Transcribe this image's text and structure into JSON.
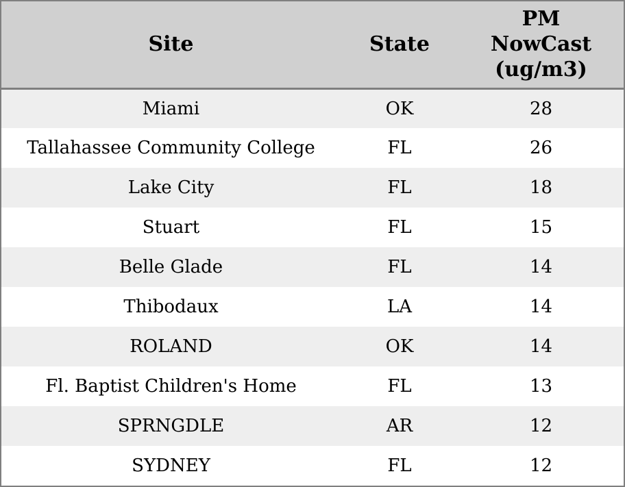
{
  "chart_data": {
    "type": "table",
    "columns": [
      "Site",
      "State",
      "PM NowCast (ug/m3)"
    ],
    "rows": [
      [
        "Miami",
        "OK",
        28
      ],
      [
        "Tallahassee Community College",
        "FL",
        26
      ],
      [
        "Lake City",
        "FL",
        18
      ],
      [
        "Stuart",
        "FL",
        15
      ],
      [
        "Belle Glade",
        "FL",
        14
      ],
      [
        "Thibodaux",
        "LA",
        14
      ],
      [
        "ROLAND",
        "OK",
        14
      ],
      [
        "Fl. Baptist Children's Home",
        "FL",
        13
      ],
      [
        "SPRNGDLE",
        "AR",
        12
      ],
      [
        "SYDNEY",
        "FL",
        12
      ]
    ],
    "layout": {
      "grid": false,
      "alternating_row_shading": true
    }
  },
  "table": {
    "header": [
      {
        "key": "site",
        "lines": [
          "Site"
        ]
      },
      {
        "key": "state",
        "lines": [
          "State"
        ]
      },
      {
        "key": "pm",
        "lines": [
          "PM",
          "NowCast",
          "(ug/m3)"
        ]
      }
    ],
    "rows": [
      {
        "site": "Miami",
        "state": "OK",
        "pm": "28"
      },
      {
        "site": "Tallahassee Community College",
        "state": "FL",
        "pm": "26"
      },
      {
        "site": "Lake City",
        "state": "FL",
        "pm": "18"
      },
      {
        "site": "Stuart",
        "state": "FL",
        "pm": "15"
      },
      {
        "site": "Belle Glade",
        "state": "FL",
        "pm": "14"
      },
      {
        "site": "Thibodaux",
        "state": "LA",
        "pm": "14"
      },
      {
        "site": "ROLAND",
        "state": "OK",
        "pm": "14"
      },
      {
        "site": "Fl. Baptist Children's Home",
        "state": "FL",
        "pm": "13"
      },
      {
        "site": "SPRNGDLE",
        "state": "AR",
        "pm": "12"
      },
      {
        "site": "SYDNEY",
        "state": "FL",
        "pm": "12"
      }
    ]
  },
  "colors": {
    "outer_border": "#7f7f7f",
    "header_bg": "#d0d0d0",
    "header_separator": "#7f7f7f",
    "row_alt_bg": "#eeeeee",
    "row_bg": "#ffffff",
    "text": "#000000"
  }
}
